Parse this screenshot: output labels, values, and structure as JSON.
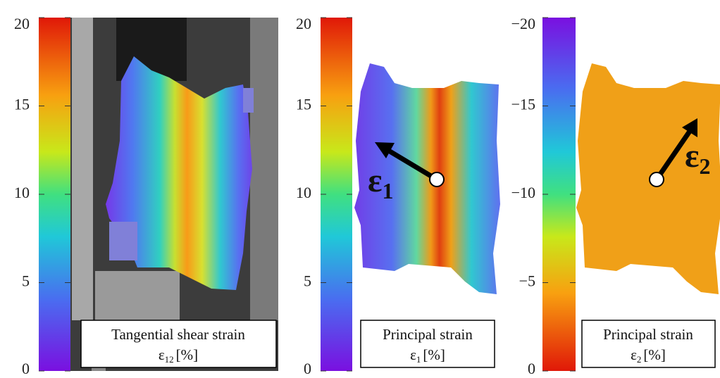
{
  "panels": [
    {
      "ylim": [
        0,
        20
      ],
      "yticks": [
        0,
        5,
        10,
        15,
        20
      ],
      "caption": {
        "line1": "Tangential shear strain",
        "symbol": "ε",
        "subscript": "12",
        "unit": "[%]"
      }
    },
    {
      "ylim": [
        0,
        20
      ],
      "yticks": [
        0,
        5,
        10,
        15,
        20
      ],
      "caption": {
        "line1": "Principal strain",
        "symbol": "ε",
        "subscript": "1",
        "unit": "[%]"
      },
      "arrow_label": {
        "symbol": "ε",
        "subscript": "1"
      }
    },
    {
      "ylim": [
        0,
        -20
      ],
      "yticks": [
        0,
        {
          "value": -5,
          "label": "−5"
        },
        {
          "value": -10,
          "label": "−10"
        },
        {
          "value": -15,
          "label": "−15"
        },
        {
          "value": -20,
          "label": "−20"
        }
      ],
      "caption": {
        "line1": "Principal strain",
        "symbol": "ε",
        "subscript": "2",
        "unit": "[%]"
      },
      "arrow_label": {
        "symbol": "ε",
        "subscript": "2"
      }
    }
  ]
}
